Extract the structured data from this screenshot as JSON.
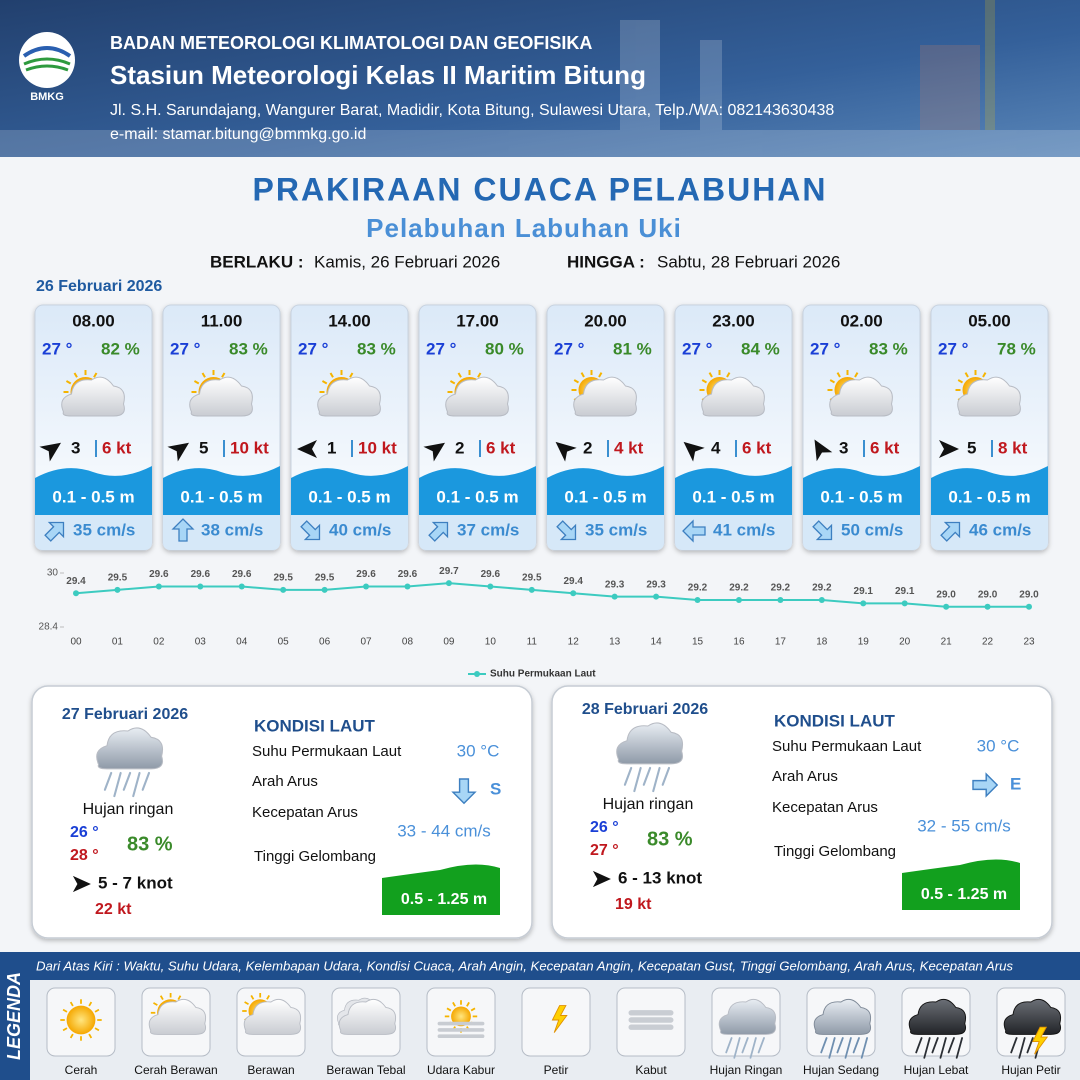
{
  "header": {
    "logo": "BMKG",
    "agency": "BADAN METEOROLOGI KLIMATOLOGI DAN GEOFISIKA",
    "station": "Stasiun Meteorologi Kelas II Maritim Bitung",
    "address": "Jl. S.H. Sarundajang, Wangurer Barat, Madidir, Kota Bitung, Sulawesi Utara, Telp./WA: 082143630438",
    "email": "e-mail: stamar.bitung@bmmkg.go.id"
  },
  "title": "PRAKIRAAN CUACA PELABUHAN",
  "subtitle": "Pelabuhan Labuhan Uki",
  "validity": {
    "from_label": "BERLAKU :",
    "from": "Kamis, 26 Februari 2026",
    "to_label": "HINGGA :",
    "to": "Sabtu, 28 Februari 2026"
  },
  "today": {
    "date": "26 Februari 2026",
    "cards": [
      {
        "time": "08.00",
        "temp": "27 °",
        "humidity": "82 %",
        "wind": "3",
        "gust": "6 kt",
        "wave": "0.1 - 0.5 m",
        "current": "35 cm/s"
      },
      {
        "time": "11.00",
        "temp": "27 °",
        "humidity": "83 %",
        "wind": "5",
        "gust": "10 kt",
        "wave": "0.1 - 0.5 m",
        "current": "38 cm/s"
      },
      {
        "time": "14.00",
        "temp": "27 °",
        "humidity": "83 %",
        "wind": "1",
        "gust": "10 kt",
        "wave": "0.1 - 0.5 m",
        "current": "40 cm/s"
      },
      {
        "time": "17.00",
        "temp": "27 °",
        "humidity": "80 %",
        "wind": "2",
        "gust": "6 kt",
        "wave": "0.1 - 0.5 m",
        "current": "37 cm/s"
      },
      {
        "time": "20.00",
        "temp": "27 °",
        "humidity": "81 %",
        "wind": "2",
        "gust": "4 kt",
        "wave": "0.1 - 0.5 m",
        "current": "35 cm/s"
      },
      {
        "time": "23.00",
        "temp": "27 °",
        "humidity": "84 %",
        "wind": "4",
        "gust": "6 kt",
        "wave": "0.1 - 0.5 m",
        "current": "41 cm/s"
      },
      {
        "time": "02.00",
        "temp": "27 °",
        "humidity": "83 %",
        "wind": "3",
        "gust": "6 kt",
        "wave": "0.1 - 0.5 m",
        "current": "50 cm/s"
      },
      {
        "time": "05.00",
        "temp": "27 °",
        "humidity": "78 %",
        "wind": "5",
        "gust": "8 kt",
        "wave": "0.1 - 0.5 m",
        "current": "46 cm/s"
      }
    ]
  },
  "sst_chart": {
    "type": "line",
    "x": [
      "00",
      "01",
      "02",
      "03",
      "04",
      "05",
      "06",
      "07",
      "08",
      "09",
      "10",
      "11",
      "12",
      "13",
      "14",
      "15",
      "16",
      "17",
      "18",
      "19",
      "20",
      "21",
      "22",
      "23"
    ],
    "series": [
      {
        "name": "Suhu Permukaan Laut",
        "color": "#3ccbc0",
        "values": [
          29.4,
          29.5,
          29.6,
          29.6,
          29.6,
          29.5,
          29.5,
          29.6,
          29.6,
          29.7,
          29.6,
          29.5,
          29.4,
          29.3,
          29.3,
          29.2,
          29.2,
          29.2,
          29.2,
          29.1,
          29.1,
          29.0,
          29.0,
          29.0
        ],
        "value_labels": [
          "29.4",
          "29.5",
          "29.6",
          "29.6",
          "29.6",
          "29.5",
          "29.5",
          "29.6",
          "29.6",
          "29.7",
          "29.6",
          "29.5",
          "29.4",
          "29.3",
          "29.3",
          "29.2",
          "29.2",
          "29.2",
          "29.2",
          "29.1",
          "29.1",
          "29.0",
          "29.0",
          "29.0"
        ]
      }
    ],
    "ylim": [
      28.4,
      30
    ],
    "yticks": [
      28.4,
      30
    ]
  },
  "days": [
    {
      "date": "27 Februari 2026",
      "weather": "Hujan ringan",
      "temp_min": "26 °",
      "temp_max": "28 °",
      "humidity": "83 %",
      "wind": "5 - 7 knot",
      "gust": "22 kt",
      "heading": "KONDISI LAUT",
      "sst_label": "Suhu Permukaan Laut",
      "sst": "30 °C",
      "dir_label": "Arah Arus",
      "dir": "S",
      "speed_label": "Kecepatan Arus",
      "speed": "33 - 44 cm/s",
      "wave_label": "Tinggi Gelombang",
      "wave": "0.5 - 1.25 m"
    },
    {
      "date": "28 Februari 2026",
      "weather": "Hujan ringan",
      "temp_min": "26 °",
      "temp_max": "27 °",
      "humidity": "83 %",
      "wind": "6 - 13 knot",
      "gust": "19 kt",
      "heading": "KONDISI LAUT",
      "sst_label": "Suhu Permukaan Laut",
      "sst": "30 °C",
      "dir_label": "Arah Arus",
      "dir": "E",
      "speed_label": "Kecepatan Arus",
      "speed": "32 - 55 cm/s",
      "wave_label": "Tinggi Gelombang",
      "wave": "0.5 - 1.25 m"
    }
  ],
  "legend": {
    "title": "LEGENDA",
    "description": "Dari Atas Kiri : Waktu, Suhu Udara, Kelembapan Udara, Kondisi Cuaca, Arah Angin, Kecepatan Angin, Kecepatan Gust, Tinggi Gelombang, Arah Arus, Kecepatan Arus",
    "items": [
      "Cerah",
      "Cerah Berawan",
      "Berawan",
      "Berawan Tebal",
      "Udara Kabur",
      "Petir",
      "Kabut",
      "Hujan Ringan",
      "Hujan Sedang",
      "Hujan Lebat",
      "Hujan Petir"
    ]
  }
}
